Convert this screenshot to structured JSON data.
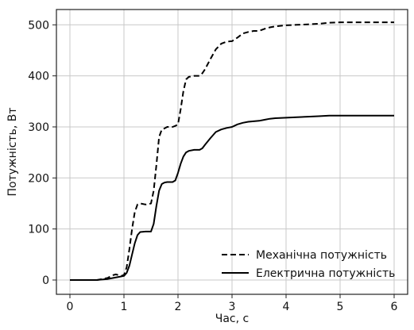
{
  "chart_data": {
    "type": "line",
    "title": "",
    "xlabel": "Час, с",
    "ylabel": "Потужність, Вт",
    "xlim": [
      -0.25,
      6.25
    ],
    "ylim": [
      -28,
      530
    ],
    "xticks": [
      0,
      1,
      2,
      3,
      4,
      5,
      6
    ],
    "yticks": [
      0,
      100,
      200,
      300,
      400,
      500
    ],
    "grid": true,
    "legend_position": "bottom-right",
    "series": [
      {
        "name": "Механічна потужність",
        "line_style": "dashed",
        "color": "#000000",
        "x": [
          0.0,
          0.5,
          0.7,
          0.78,
          0.85,
          0.95,
          1.0,
          1.05,
          1.1,
          1.15,
          1.2,
          1.25,
          1.3,
          1.4,
          1.5,
          1.55,
          1.6,
          1.65,
          1.7,
          1.75,
          1.8,
          1.9,
          1.95,
          2.0,
          2.05,
          2.1,
          2.15,
          2.2,
          2.3,
          2.4,
          2.45,
          2.5,
          2.6,
          2.7,
          2.8,
          2.9,
          3.0,
          3.1,
          3.2,
          3.3,
          3.4,
          3.5,
          3.6,
          3.7,
          3.8,
          4.0,
          4.2,
          4.4,
          4.6,
          4.8,
          5.0,
          5.5,
          6.0
        ],
        "y": [
          0,
          0,
          4,
          9,
          11,
          8,
          10,
          25,
          60,
          100,
          133,
          148,
          150,
          148,
          150,
          175,
          225,
          280,
          295,
          297,
          300,
          300,
          302,
          305,
          335,
          370,
          393,
          398,
          400,
          400,
          405,
          413,
          433,
          452,
          463,
          467,
          468,
          475,
          483,
          486,
          488,
          488,
          492,
          495,
          497,
          499,
          500,
          501,
          502,
          504,
          505,
          505,
          505
        ]
      },
      {
        "name": "Електрична потужність",
        "line_style": "solid",
        "color": "#000000",
        "x": [
          0.0,
          0.5,
          0.7,
          0.8,
          0.9,
          1.0,
          1.05,
          1.1,
          1.15,
          1.2,
          1.25,
          1.3,
          1.4,
          1.5,
          1.55,
          1.6,
          1.65,
          1.7,
          1.75,
          1.8,
          1.9,
          1.95,
          2.0,
          2.05,
          2.1,
          2.15,
          2.2,
          2.3,
          2.4,
          2.45,
          2.5,
          2.6,
          2.7,
          2.8,
          2.9,
          3.0,
          3.1,
          3.2,
          3.3,
          3.4,
          3.5,
          3.6,
          3.7,
          3.8,
          4.0,
          4.2,
          4.4,
          4.6,
          4.8,
          5.0,
          5.5,
          6.0
        ],
        "y": [
          0,
          0,
          2,
          4,
          6,
          8,
          14,
          28,
          50,
          72,
          88,
          94,
          95,
          95,
          110,
          145,
          175,
          188,
          191,
          192,
          192,
          195,
          210,
          228,
          242,
          250,
          253,
          255,
          255,
          258,
          265,
          278,
          290,
          295,
          298,
          300,
          305,
          308,
          310,
          311,
          312,
          314,
          316,
          317,
          318,
          319,
          320,
          321,
          322,
          322,
          322,
          322
        ]
      }
    ]
  }
}
